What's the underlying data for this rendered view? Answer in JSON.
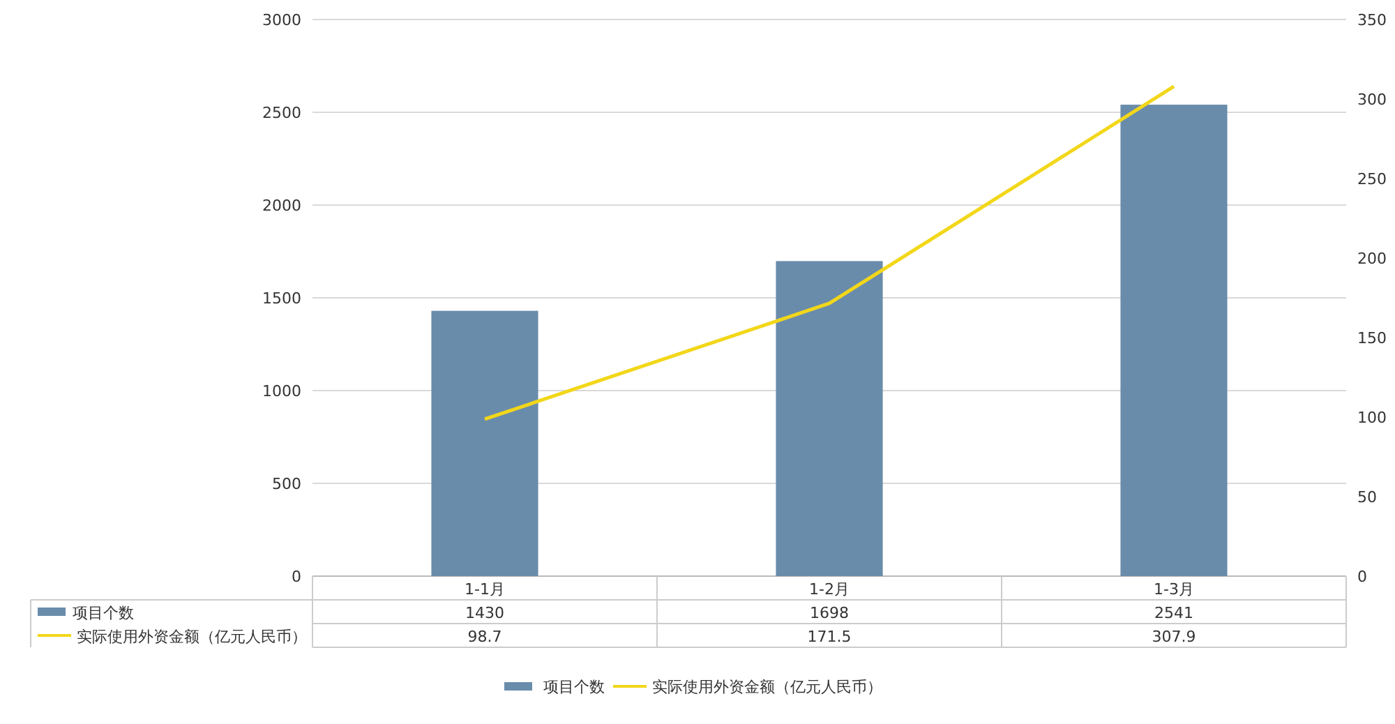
{
  "chart_data": {
    "type": "bar",
    "categories": [
      "1-1月",
      "1-2月",
      "1-3月"
    ],
    "series": [
      {
        "name": "项目个数",
        "color": "#6a8cab",
        "values": [
          1430,
          1698,
          2541
        ]
      },
      {
        "name": "实际使用外资金额（亿元人民币）",
        "type": "line",
        "axis": "y2",
        "color": "#f2d71a",
        "values": [
          98.7,
          171.5,
          307.9
        ]
      }
    ],
    "ylim": [
      0,
      3000
    ],
    "yticks": [
      0,
      500,
      1000,
      1500,
      2000,
      2500,
      3000
    ],
    "y2lim": [
      0,
      350
    ],
    "y2ticks": [
      0,
      50,
      100,
      150,
      200,
      250,
      300,
      350
    ],
    "grid": "y",
    "legend": "bottom",
    "data_labels": true,
    "marker": "none"
  }
}
